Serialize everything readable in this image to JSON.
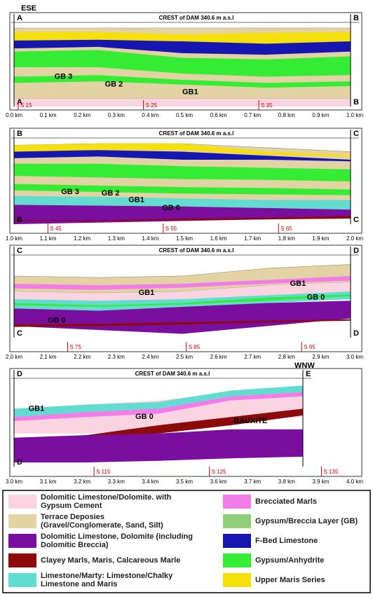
{
  "orientation": {
    "left": "ESE",
    "right": "WNW"
  },
  "panels": [
    {
      "left_top": "A",
      "left_bottom": "A",
      "right_top": "B",
      "right_bottom": "B",
      "crest": "CREST of DAM  340.6 m a.s.l",
      "labels": [
        "GB 3",
        "GB 2",
        "GB1"
      ],
      "stations": [
        "S 15",
        "S 25",
        "S 35"
      ],
      "km": [
        "0.0 km",
        "0.1 km",
        "0.2 km",
        "0.3 km",
        "0.4 km",
        "0.5 km",
        "0.6 km",
        "0.7 km",
        "0.8 km",
        "0.9 km",
        "1.0 km"
      ]
    },
    {
      "left_top": "B",
      "left_bottom": "B",
      "right_top": "C",
      "right_bottom": "C",
      "crest": "CREST of DAM  340.6 m a.s.l",
      "labels": [
        "GB 3",
        "GB 2",
        "GB1",
        "GB 0"
      ],
      "stations": [
        "S 45",
        "S 55",
        "S 65"
      ],
      "km": [
        "1.0 km",
        "1.1 km",
        "1.2 km",
        "1.3 km",
        "1.4 km",
        "1.5 km",
        "1.6 km",
        "1.7 km",
        "1.8 km",
        "1.9 km",
        "2.0 km"
      ]
    },
    {
      "left_top": "C",
      "left_bottom": "C",
      "right_top": "D",
      "right_bottom": "D",
      "crest": "CREST of DAM  340.6 m a.s.l",
      "labels": [
        "GB1",
        "GB 0",
        "GB1",
        "GB 0"
      ],
      "stations": [
        "S 75",
        "S 85",
        "S 95"
      ],
      "km": [
        "2.0 km",
        "2.1 km",
        "2.2 km",
        "2.3 km",
        "2.4 km",
        "2.5 km",
        "2.6 km",
        "2.7 km",
        "2.8 km",
        "2.9 km",
        "3.0 km"
      ]
    },
    {
      "left_top": "D",
      "left_bottom": "D",
      "right_top": "E",
      "crest": "CREST of DAM  340.6 m a.s.l",
      "labels": [
        "GB1",
        "GB 0",
        "BAUXITE"
      ],
      "stations": [
        "S 115",
        "S 125",
        "S 135"
      ],
      "km": [
        "3.0 km",
        "3.1 km",
        "3.2 km",
        "3.3 km",
        "3.4 km",
        "3.5 km",
        "3.6 km",
        "3.7 km",
        "3.8 km",
        "3.9 km",
        "4.0 km"
      ]
    }
  ],
  "legend": [
    {
      "lines": [
        "Dolomitic Limestone/Dolomite. with",
        "Gypsum Cement"
      ],
      "color": "#fad4e0"
    },
    {
      "lines": [
        "Terrace Deposies",
        "(Gravel/Conglomerate, Sand, Silt)"
      ],
      "color": "#e2d2a4"
    },
    {
      "lines": [
        "Dolomitic Limestone, Dolomite (including",
        "Dolomitic Breccia)"
      ],
      "color": "#7a0e9e"
    },
    {
      "lines": [
        "Clayey Marls, Maris, Calcareous Marle"
      ],
      "color": "#8c0a0a"
    },
    {
      "lines": [
        "Limestone/Marty: Limestone/Chalky",
        "Limestone and Maris"
      ],
      "color": "#62dbd0"
    },
    {
      "lines": [
        "Brecciated Marls"
      ],
      "color": "#f27de9"
    },
    {
      "lines": [
        "Gypsum/Breccia Layer (GB)"
      ],
      "color": "#8fcf7a"
    },
    {
      "lines": [
        "F-Bed Limestone"
      ],
      "color": "#1616b0"
    },
    {
      "lines": [
        "Gypsum/Anhydrite"
      ],
      "color": "#34ec34"
    },
    {
      "lines": [
        "Upper Maris Series"
      ],
      "color": "#f5e00c"
    }
  ]
}
